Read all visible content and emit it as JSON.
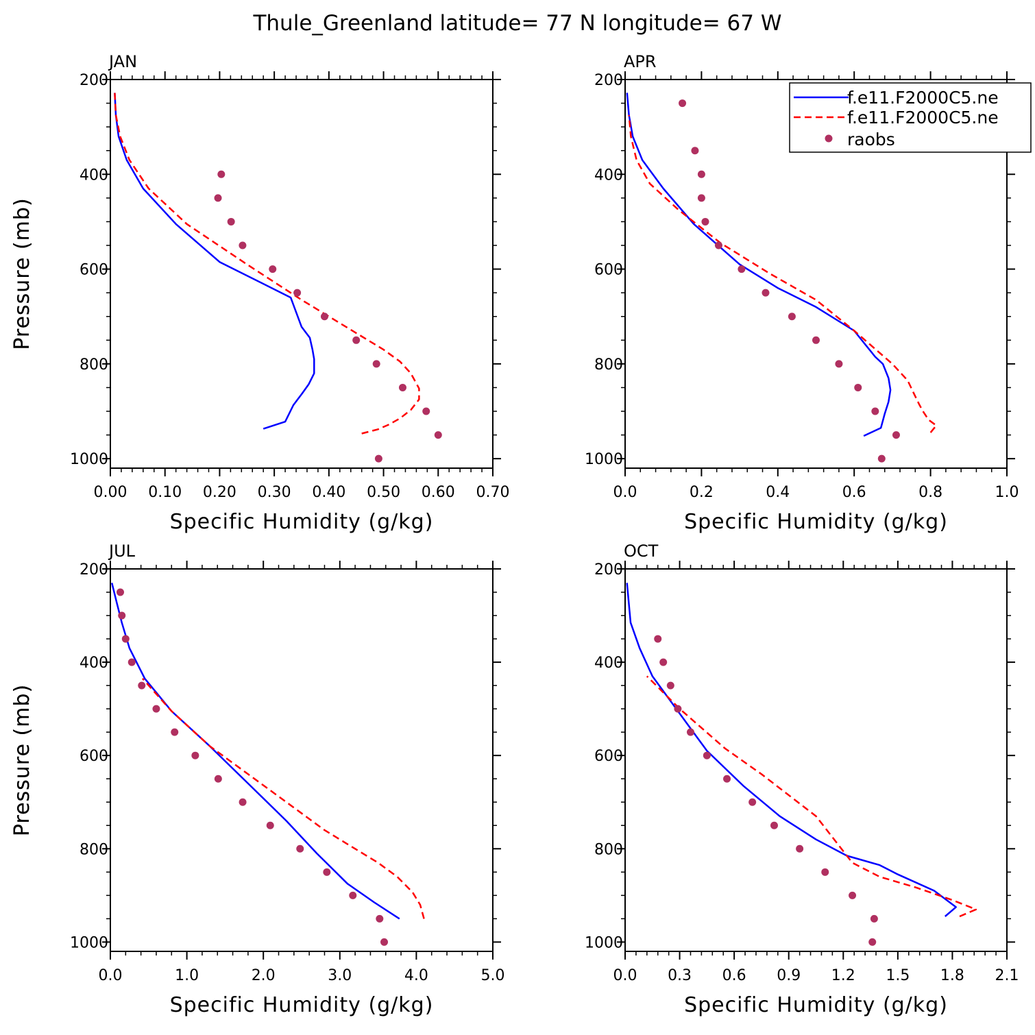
{
  "title": "Thule_Greenland  latitude= 77 N longitude= 67 W",
  "colors": {
    "model1": "#0000ff",
    "model2": "#ff0000",
    "raobs": "#b03060",
    "frame": "#000000"
  },
  "legend": {
    "entries": [
      {
        "label": "f.e11.F2000C5.ne",
        "style": "solid",
        "color": "#0000ff"
      },
      {
        "label": "f.e11.F2000C5.ne",
        "style": "dashed",
        "color": "#ff0000"
      },
      {
        "label": "raobs",
        "style": "marker",
        "color": "#b03060"
      }
    ]
  },
  "chart_data": [
    {
      "type": "line",
      "panel_title": "JAN",
      "xlabel": "Specific Humidity (g/kg)",
      "ylabel": "Pressure (mb)",
      "xlim": [
        0,
        0.7
      ],
      "ylim": [
        1020,
        200
      ],
      "xticks": [
        0,
        0.1,
        0.2,
        0.3,
        0.4,
        0.5,
        0.6,
        0.7
      ],
      "xtick_labels": [
        "0.00",
        "0.10",
        "0.20",
        "0.30",
        "0.40",
        "0.50",
        "0.60",
        "0.70"
      ],
      "yticks": [
        200,
        400,
        600,
        800,
        1000
      ],
      "ytick_labels": [
        "200",
        "400",
        "600",
        "800",
        "1000"
      ],
      "series": [
        {
          "name": "f.e11.F2000C5.ne",
          "style": "solid",
          "x": [
            0.28,
            0.32,
            0.335,
            0.35,
            0.363,
            0.373,
            0.373,
            0.37,
            0.365,
            0.35,
            0.33,
            0.2,
            0.12,
            0.06,
            0.03,
            0.015,
            0.01,
            0.008
          ],
          "y": [
            937,
            922,
            887,
            864,
            843,
            820,
            790,
            770,
            745,
            722,
            660,
            585,
            505,
            430,
            370,
            320,
            275,
            228
          ]
        },
        {
          "name": "f.e11.F2000C5.ne",
          "style": "dashed",
          "x": [
            0.46,
            0.49,
            0.51,
            0.53,
            0.55,
            0.565,
            0.565,
            0.55,
            0.53,
            0.5,
            0.45,
            0.35,
            0.25,
            0.14,
            0.07,
            0.035,
            0.018,
            0.01,
            0.008
          ],
          "y": [
            947,
            938,
            928,
            915,
            897,
            875,
            852,
            820,
            795,
            770,
            735,
            665,
            590,
            505,
            430,
            370,
            320,
            275,
            228
          ]
        },
        {
          "name": "raobs",
          "style": "marker",
          "x": [
            0.203,
            0.197,
            0.221,
            0.242,
            0.297,
            0.342,
            0.392,
            0.45,
            0.487,
            0.535,
            0.578,
            0.6,
            0.491
          ],
          "y": [
            400,
            450,
            500,
            550,
            600,
            650,
            700,
            750,
            800,
            850,
            900,
            950,
            1000
          ]
        }
      ]
    },
    {
      "type": "line",
      "panel_title": "APR",
      "xlabel": "Specific Humidity (g/kg)",
      "ylabel": "Pressure (mb)",
      "xlim": [
        0,
        1.0
      ],
      "ylim": [
        1020,
        200
      ],
      "xticks": [
        0,
        0.2,
        0.4,
        0.6,
        0.8,
        1.0
      ],
      "xtick_labels": [
        "0.0",
        "0.2",
        "0.4",
        "0.6",
        "0.8",
        "1.0"
      ],
      "yticks": [
        200,
        400,
        600,
        800,
        1000
      ],
      "ytick_labels": [
        "200",
        "400",
        "600",
        "800",
        "1000"
      ],
      "series": [
        {
          "name": "f.e11.F2000C5.ne",
          "style": "solid",
          "x": [
            0.625,
            0.67,
            0.68,
            0.69,
            0.695,
            0.69,
            0.675,
            0.655,
            0.6,
            0.5,
            0.4,
            0.3,
            0.18,
            0.1,
            0.045,
            0.02,
            0.01,
            0.005
          ],
          "y": [
            952,
            935,
            905,
            880,
            855,
            830,
            800,
            785,
            730,
            680,
            640,
            590,
            505,
            430,
            370,
            320,
            275,
            228
          ]
        },
        {
          "name": "f.e11.F2000C5.ne",
          "style": "dashed",
          "x": [
            0.8,
            0.815,
            0.795,
            0.78,
            0.77,
            0.755,
            0.74,
            0.7,
            0.6,
            0.5,
            0.38,
            0.25,
            0.14,
            0.065,
            0.03,
            0.015,
            0.01
          ],
          "y": [
            945,
            930,
            918,
            900,
            885,
            860,
            835,
            800,
            730,
            665,
            610,
            545,
            475,
            420,
            370,
            320,
            275
          ]
        },
        {
          "name": "raobs",
          "style": "marker",
          "x": [
            0.15,
            0.183,
            0.2,
            0.2,
            0.21,
            0.245,
            0.305,
            0.368,
            0.437,
            0.5,
            0.56,
            0.61,
            0.655,
            0.71,
            0.672
          ],
          "y": [
            250,
            350,
            400,
            450,
            500,
            550,
            600,
            650,
            700,
            750,
            800,
            850,
            900,
            950,
            1000
          ]
        }
      ]
    },
    {
      "type": "line",
      "panel_title": "JUL",
      "xlabel": "Specific Humidity (g/kg)",
      "ylabel": "Pressure (mb)",
      "xlim": [
        0,
        5.0
      ],
      "ylim": [
        1020,
        200
      ],
      "xticks": [
        0,
        1,
        2,
        3,
        4,
        5
      ],
      "xtick_labels": [
        "0.0",
        "1.0",
        "2.0",
        "3.0",
        "4.0",
        "5.0"
      ],
      "yticks": [
        200,
        400,
        600,
        800,
        1000
      ],
      "ytick_labels": [
        "200",
        "400",
        "600",
        "800",
        "1000"
      ],
      "series": [
        {
          "name": "f.e11.F2000C5.ne",
          "style": "solid",
          "x": [
            3.78,
            3.45,
            3.1,
            2.7,
            2.3,
            1.8,
            1.3,
            0.8,
            0.45,
            0.25,
            0.15,
            0.08,
            0.02
          ],
          "y": [
            950,
            915,
            875,
            810,
            740,
            660,
            580,
            505,
            435,
            370,
            315,
            270,
            230
          ]
        },
        {
          "name": "f.e11.F2000C5.ne",
          "style": "dashed",
          "x": [
            4.1,
            4.05,
            3.95,
            3.75,
            3.5,
            3.2,
            2.8,
            2.3,
            1.8,
            1.3,
            0.8,
            0.42
          ],
          "y": [
            950,
            920,
            893,
            860,
            830,
            800,
            760,
            700,
            640,
            580,
            505,
            435
          ]
        },
        {
          "name": "raobs",
          "style": "marker",
          "x": [
            0.13,
            0.15,
            0.2,
            0.28,
            0.41,
            0.6,
            0.84,
            1.11,
            1.41,
            1.73,
            2.09,
            2.48,
            2.83,
            3.17,
            3.52,
            3.58
          ],
          "y": [
            250,
            300,
            350,
            400,
            450,
            500,
            550,
            600,
            650,
            700,
            750,
            800,
            850,
            900,
            950,
            1000
          ]
        }
      ]
    },
    {
      "type": "line",
      "panel_title": "OCT",
      "xlabel": "Specific Humidity (g/kg)",
      "ylabel": "Pressure (mb)",
      "xlim": [
        0,
        2.1
      ],
      "ylim": [
        1020,
        200
      ],
      "xticks": [
        0,
        0.3,
        0.6,
        0.9,
        1.2,
        1.5,
        1.8,
        2.1
      ],
      "xtick_labels": [
        "0.0",
        "0.3",
        "0.6",
        "0.9",
        "1.2",
        "1.5",
        "1.8",
        "2.1"
      ],
      "yticks": [
        200,
        400,
        600,
        800,
        1000
      ],
      "ytick_labels": [
        "200",
        "400",
        "600",
        "800",
        "1000"
      ],
      "series": [
        {
          "name": "f.e11.F2000C5.ne",
          "style": "solid",
          "x": [
            1.76,
            1.82,
            1.7,
            1.5,
            1.4,
            1.22,
            1.05,
            0.85,
            0.65,
            0.45,
            0.3,
            0.15,
            0.08,
            0.03,
            0.01
          ],
          "y": [
            945,
            925,
            890,
            855,
            835,
            815,
            780,
            730,
            665,
            590,
            510,
            430,
            370,
            315,
            230
          ]
        },
        {
          "name": "f.e11.F2000C5.ne",
          "style": "dashed",
          "x": [
            1.84,
            1.93,
            1.8,
            1.6,
            1.4,
            1.25,
            1.05,
            0.75,
            0.55,
            0.3,
            0.12
          ],
          "y": [
            945,
            930,
            910,
            883,
            860,
            830,
            730,
            640,
            585,
            500,
            430
          ]
        },
        {
          "name": "raobs",
          "style": "marker",
          "x": [
            0.18,
            0.21,
            0.25,
            0.29,
            0.36,
            0.45,
            0.56,
            0.7,
            0.82,
            0.96,
            1.1,
            1.25,
            1.37,
            1.36
          ],
          "y": [
            350,
            400,
            450,
            500,
            550,
            600,
            650,
            700,
            750,
            800,
            850,
            900,
            950,
            1000
          ]
        }
      ]
    }
  ]
}
